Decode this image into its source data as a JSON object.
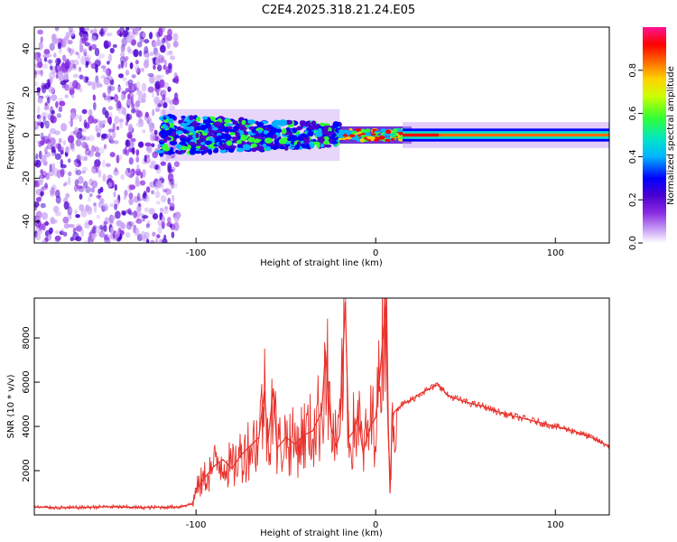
{
  "figure_title": "C2E4.2025.318.21.24.E05",
  "colors": {
    "snr_line": "#e8302a",
    "axis": "#000000",
    "colormap": [
      "#ffffff",
      "#c9a3f5",
      "#8a2be2",
      "#4b00cf",
      "#0000ff",
      "#00b4ff",
      "#00e5c8",
      "#33ff33",
      "#ccff00",
      "#ffd200",
      "#ff6a00",
      "#ff0000",
      "#ff1493"
    ]
  },
  "chart_data": [
    {
      "type": "heatmap",
      "name": "spectrogram",
      "title": "C2E4.2025.318.21.24.E05",
      "xlabel": "Height of straight line (km)",
      "ylabel": "Frequency (Hz)",
      "xlim": [
        -190,
        130
      ],
      "ylim": [
        -50,
        50
      ],
      "xticks": [
        -100,
        0,
        100
      ],
      "xtick_labels": [
        "-100",
        "0",
        "100"
      ],
      "yticks": [
        -40,
        -20,
        0,
        20,
        40
      ],
      "ytick_labels": [
        "-40",
        "-20",
        "0",
        "20",
        "40"
      ],
      "colorbar": {
        "label": "Normalized spectral amplitude",
        "range": [
          0,
          1
        ],
        "ticks": [
          0,
          0.2,
          0.4,
          0.6,
          0.8
        ],
        "tick_labels": [
          "0.0",
          "0.2",
          "0.4",
          "0.6",
          "0.8"
        ]
      },
      "regions": [
        {
          "desc": "scattered noise",
          "x": [
            -190,
            -110
          ],
          "y": [
            -50,
            50
          ],
          "amplitude": 0.1
        },
        {
          "desc": "noisy band",
          "x": [
            -120,
            -20
          ],
          "y": [
            -10,
            10
          ],
          "amplitude": 0.35
        },
        {
          "desc": "narrowing band",
          "x": [
            -20,
            20
          ],
          "y": [
            -3,
            3
          ],
          "amplitude": 0.6
        },
        {
          "desc": "steady line",
          "x": [
            15,
            130
          ],
          "y": [
            -2,
            2
          ],
          "amplitude": 0.85
        }
      ]
    },
    {
      "type": "line",
      "name": "snr",
      "xlabel": "Height of straight line (km)",
      "ylabel": "SNR (10 * v/v)",
      "xlim": [
        -190,
        130
      ],
      "ylim": [
        0,
        9800
      ],
      "xticks": [
        -100,
        0,
        100
      ],
      "xtick_labels": [
        "-100",
        "0",
        "100"
      ],
      "yticks": [
        2000,
        4000,
        6000,
        8000
      ],
      "ytick_labels": [
        "2000",
        "4000",
        "6000",
        "8000"
      ],
      "series": [
        {
          "name": "SNR",
          "x": [
            -190,
            -170,
            -150,
            -130,
            -110,
            -102,
            -100,
            -95,
            -90,
            -85,
            -80,
            -75,
            -70,
            -65,
            -62,
            -60,
            -57,
            -55,
            -50,
            -45,
            -40,
            -35,
            -30,
            -28,
            -25,
            -22,
            -20,
            -17,
            -15,
            -12,
            -10,
            -7,
            -5,
            -3,
            0,
            2,
            4,
            6,
            7,
            8,
            9,
            10,
            12,
            15,
            20,
            25,
            30,
            35,
            40,
            50,
            60,
            70,
            80,
            90,
            100,
            110,
            120,
            130
          ],
          "y": [
            350,
            320,
            370,
            330,
            360,
            500,
            1100,
            1700,
            2200,
            2500,
            2100,
            2700,
            3100,
            3500,
            5600,
            3300,
            5700,
            3000,
            3500,
            3200,
            3600,
            3800,
            4700,
            7400,
            4000,
            3100,
            3600,
            9600,
            3500,
            3800,
            4500,
            2800,
            3500,
            4000,
            4400,
            6000,
            8000,
            9800,
            4000,
            1000,
            3800,
            4600,
            4800,
            5000,
            5200,
            5500,
            5700,
            5900,
            5400,
            5100,
            4900,
            4600,
            4400,
            4200,
            4000,
            3800,
            3500,
            3100
          ]
        }
      ]
    }
  ]
}
